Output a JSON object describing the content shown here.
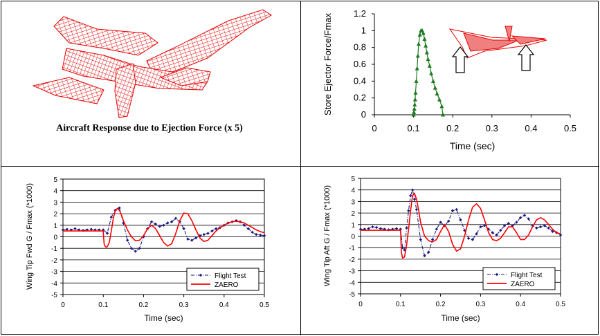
{
  "panel_top_left": {
    "caption": "Aircraft Response  due to Ejection Force (x 5)"
  },
  "colors": {
    "flight_test": "#1a1a80",
    "zaero": "#ff0000",
    "ejector": "#1e7a1e",
    "aircraft_mesh": "#e60000"
  },
  "chart_data": [
    {
      "id": "ejector",
      "type": "line",
      "xlabel": "Time (sec)",
      "ylabel": "Store Ejector Force/Fmax",
      "xlim": [
        0,
        0.5
      ],
      "ylim": [
        0,
        1.2
      ],
      "xticks": [
        "0",
        "0.1",
        "0.2",
        "0.3",
        "0.4",
        "0.5"
      ],
      "yticks": [
        "0",
        "0.2",
        "0.4",
        "0.6",
        "0.8",
        "1",
        "1.2"
      ],
      "grid": false,
      "series": [
        {
          "marker": "triangle",
          "x": [
            0.1,
            0.101,
            0.102,
            0.103,
            0.104,
            0.105,
            0.107,
            0.109,
            0.111,
            0.113,
            0.116,
            0.119,
            0.122,
            0.125,
            0.128,
            0.131,
            0.134,
            0.137,
            0.141,
            0.145,
            0.15,
            0.155,
            0.16,
            0.166,
            0.172,
            0.175
          ],
          "y": [
            0.0,
            0.03,
            0.07,
            0.12,
            0.18,
            0.26,
            0.4,
            0.55,
            0.7,
            0.84,
            0.95,
            1.0,
            1.0,
            0.97,
            0.9,
            0.82,
            0.74,
            0.66,
            0.58,
            0.49,
            0.4,
            0.32,
            0.25,
            0.18,
            0.1,
            0.0
          ]
        }
      ]
    },
    {
      "id": "fwd",
      "type": "line",
      "xlabel": "Time (sec)",
      "ylabel": "Wing Tip Fwd G / Fmax (*1000)",
      "xlim": [
        0,
        0.5
      ],
      "ylim": [
        -5,
        5
      ],
      "xticks": [
        "0",
        "0.1",
        "0.2",
        "0.3",
        "0.4",
        "0.5"
      ],
      "yticks": [
        "-5",
        "-4",
        "-3",
        "-2",
        "-1",
        "0",
        "1",
        "2",
        "3",
        "4",
        "5"
      ],
      "grid": true,
      "legend": "bottom-right",
      "series": [
        {
          "name": "Flight Test",
          "style": "dash-dot with diamond markers",
          "x": [
            0,
            0.01,
            0.02,
            0.03,
            0.04,
            0.05,
            0.06,
            0.07,
            0.08,
            0.09,
            0.1,
            0.11,
            0.12,
            0.13,
            0.14,
            0.15,
            0.16,
            0.17,
            0.18,
            0.19,
            0.2,
            0.21,
            0.22,
            0.23,
            0.24,
            0.25,
            0.26,
            0.27,
            0.28,
            0.29,
            0.3,
            0.31,
            0.32,
            0.33,
            0.34,
            0.35,
            0.36,
            0.37,
            0.38,
            0.39,
            0.4,
            0.41,
            0.42,
            0.43,
            0.44,
            0.45,
            0.46,
            0.47,
            0.48,
            0.49,
            0.5
          ],
          "y": [
            0.6,
            0.65,
            0.6,
            0.7,
            0.6,
            0.55,
            0.6,
            0.65,
            0.6,
            0.6,
            0.6,
            0.3,
            1.7,
            2.3,
            2.5,
            1.2,
            -0.3,
            -1.0,
            -1.25,
            -1.0,
            0.0,
            0.7,
            1.3,
            1.1,
            0.9,
            1.0,
            1.2,
            1.3,
            1.6,
            1.3,
            0.7,
            -0.2,
            -0.3,
            -0.1,
            0.1,
            0.2,
            0.3,
            0.5,
            0.7,
            0.8,
            1.0,
            1.2,
            1.3,
            1.4,
            1.3,
            1.0,
            0.7,
            0.4,
            0.2,
            0.15,
            0.1
          ]
        },
        {
          "name": "ZAERO",
          "style": "solid",
          "x": [
            0,
            0.05,
            0.1,
            0.102,
            0.105,
            0.108,
            0.11,
            0.115,
            0.12,
            0.125,
            0.13,
            0.135,
            0.14,
            0.145,
            0.15,
            0.16,
            0.17,
            0.18,
            0.19,
            0.2,
            0.21,
            0.22,
            0.23,
            0.24,
            0.25,
            0.26,
            0.27,
            0.28,
            0.29,
            0.3,
            0.31,
            0.32,
            0.33,
            0.34,
            0.35,
            0.36,
            0.37,
            0.38,
            0.39,
            0.4,
            0.41,
            0.42,
            0.43,
            0.44,
            0.45,
            0.46,
            0.47,
            0.48,
            0.49,
            0.5
          ],
          "y": [
            0.5,
            0.5,
            0.5,
            -0.6,
            -0.85,
            -0.9,
            -0.85,
            -0.5,
            0.5,
            1.6,
            2.3,
            2.45,
            2.3,
            1.9,
            1.4,
            0.6,
            0.0,
            -0.35,
            -0.3,
            0.1,
            0.7,
            1.0,
            0.7,
            0.1,
            -0.5,
            -0.8,
            -0.6,
            0.3,
            1.4,
            2.05,
            2.0,
            1.4,
            0.6,
            -0.1,
            -0.4,
            -0.3,
            0.1,
            0.5,
            0.8,
            1.0,
            1.2,
            1.3,
            1.35,
            1.3,
            1.2,
            1.0,
            0.8,
            0.6,
            0.45,
            0.35
          ]
        }
      ]
    },
    {
      "id": "aft",
      "type": "line",
      "xlabel": "Time (sec)",
      "ylabel": "Wing Tip Aft G / Fmax (*1000)",
      "xlim": [
        0,
        0.5
      ],
      "ylim": [
        -5,
        5
      ],
      "xticks": [
        "0",
        "0.1",
        "0.2",
        "0.3",
        "0.4",
        "0.5"
      ],
      "yticks": [
        "-5",
        "-4",
        "-3",
        "-2",
        "-1",
        "0",
        "1",
        "2",
        "3",
        "4",
        "5"
      ],
      "grid": true,
      "legend": "bottom-right",
      "series": [
        {
          "name": "Flight Test",
          "style": "dash-dot with diamond markers",
          "x": [
            0,
            0.01,
            0.02,
            0.03,
            0.04,
            0.05,
            0.06,
            0.07,
            0.08,
            0.09,
            0.1,
            0.105,
            0.11,
            0.115,
            0.12,
            0.125,
            0.13,
            0.135,
            0.14,
            0.15,
            0.16,
            0.17,
            0.18,
            0.19,
            0.2,
            0.21,
            0.22,
            0.23,
            0.24,
            0.25,
            0.26,
            0.27,
            0.28,
            0.29,
            0.3,
            0.31,
            0.32,
            0.33,
            0.34,
            0.35,
            0.36,
            0.37,
            0.38,
            0.39,
            0.4,
            0.41,
            0.42,
            0.43,
            0.44,
            0.45,
            0.46,
            0.47,
            0.48,
            0.49,
            0.5
          ],
          "y": [
            0.6,
            0.6,
            0.65,
            0.8,
            0.75,
            0.65,
            0.6,
            0.55,
            0.6,
            0.65,
            0.6,
            -1.0,
            -1.2,
            0.7,
            2.2,
            3.5,
            4.0,
            3.2,
            2.3,
            -0.3,
            -1.7,
            -1.4,
            -0.3,
            0.6,
            1.2,
            0.9,
            1.3,
            2.2,
            2.3,
            1.4,
            0.5,
            -0.2,
            -0.3,
            0.2,
            0.8,
            0.9,
            0.6,
            0.3,
            0.1,
            0.5,
            0.9,
            1.1,
            0.9,
            1.2,
            1.6,
            1.8,
            1.5,
            0.9,
            0.7,
            0.8,
            0.9,
            0.7,
            0.4,
            0.3,
            0.1
          ]
        },
        {
          "name": "ZAERO",
          "style": "solid",
          "x": [
            0,
            0.05,
            0.1,
            0.102,
            0.105,
            0.11,
            0.115,
            0.12,
            0.125,
            0.13,
            0.135,
            0.14,
            0.145,
            0.15,
            0.16,
            0.17,
            0.18,
            0.19,
            0.2,
            0.21,
            0.22,
            0.23,
            0.24,
            0.25,
            0.26,
            0.27,
            0.28,
            0.29,
            0.3,
            0.31,
            0.32,
            0.33,
            0.34,
            0.35,
            0.36,
            0.37,
            0.38,
            0.39,
            0.4,
            0.41,
            0.42,
            0.43,
            0.44,
            0.45,
            0.46,
            0.47,
            0.48,
            0.49,
            0.5
          ],
          "y": [
            0.5,
            0.5,
            0.5,
            -1.4,
            -1.9,
            -1.8,
            -0.8,
            0.6,
            2.2,
            3.5,
            3.7,
            3.2,
            2.3,
            1.2,
            0.0,
            -0.4,
            -0.5,
            -0.3,
            0.4,
            1.0,
            0.4,
            -0.7,
            -1.3,
            -1.1,
            0.0,
            1.4,
            2.5,
            2.8,
            2.4,
            1.4,
            0.3,
            -0.3,
            -0.4,
            -0.2,
            0.3,
            0.8,
            0.8,
            0.3,
            -0.3,
            -0.3,
            0.1,
            0.8,
            1.4,
            1.6,
            1.4,
            1.0,
            0.6,
            0.3,
            0.2
          ]
        }
      ]
    }
  ]
}
